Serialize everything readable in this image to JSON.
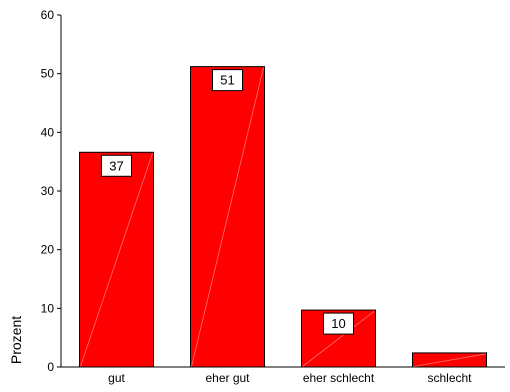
{
  "chart_data": {
    "type": "bar",
    "categories": [
      "gut",
      "eher gut",
      "eher schlecht",
      "schlecht"
    ],
    "values": [
      36.6,
      51.2,
      9.7,
      2.4
    ],
    "data_labels": [
      "37",
      "51",
      "10",
      ""
    ],
    "ylabel": "Prozent",
    "ylim": [
      0,
      60
    ],
    "yticks": [
      0,
      10,
      20,
      30,
      40,
      50,
      60
    ],
    "grid": false,
    "legend": "none",
    "bar_color": "#ff0000",
    "bar_edge_color": "#000000"
  }
}
